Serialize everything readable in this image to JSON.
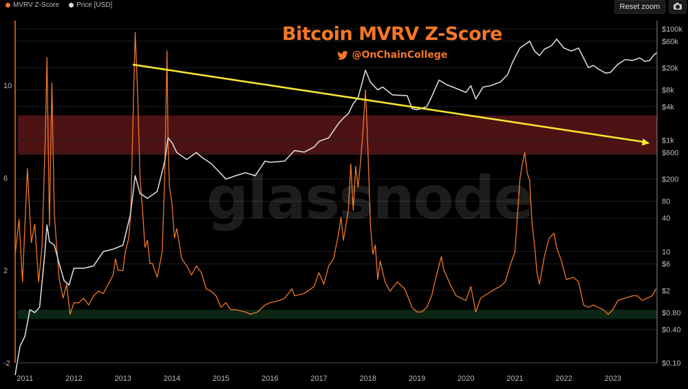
{
  "legend": [
    {
      "label": "MVRV Z-Score",
      "color": "#f37726"
    },
    {
      "label": "Price [USD]",
      "color": "#d9d9d9"
    }
  ],
  "controls": {
    "reset_zoom": "Reset zoom",
    "export_icon": "camera-icon"
  },
  "header": {
    "title": "Bitcoin MVRV Z-Score",
    "handle": "@OnChainCollege",
    "handle_icon": "twitter-bird-icon"
  },
  "watermark": "glassnode",
  "colors": {
    "zscore": "#f37726",
    "price": "#d9d9d9",
    "trend_arrow": "#f5e62f",
    "red_band": "#5a1517",
    "green_band": "#0c2a16",
    "background": "#000000"
  },
  "chart_data": {
    "type": "line",
    "x_ticks": [
      "2011",
      "2012",
      "2013",
      "2014",
      "2015",
      "2016",
      "2017",
      "2018",
      "2019",
      "2020",
      "2021",
      "2022",
      "2023"
    ],
    "x_range": [
      2010.8,
      2023.9
    ],
    "left_axis": {
      "ticks": [
        -2,
        2,
        6,
        10
      ],
      "range": [
        -2,
        12.8
      ]
    },
    "right_axis": {
      "scale": "log",
      "ticks": [
        "$100k",
        "$60k",
        "$20k",
        "$8k",
        "$4k",
        "$1k",
        "$600",
        "$200",
        "80",
        "40",
        "10",
        "$6",
        "$2",
        "$0.80",
        "$0.40",
        "$0.10"
      ],
      "tick_values": [
        100000,
        60000,
        20000,
        8000,
        4000,
        1000,
        600,
        200,
        80,
        40,
        10,
        6,
        2,
        0.8,
        0.4,
        0.1
      ],
      "range": [
        0.1,
        140000
      ]
    },
    "bands": [
      {
        "name": "red",
        "from": 7.0,
        "to": 8.7
      },
      {
        "name": "green",
        "from": -0.1,
        "to": 0.3
      }
    ],
    "trend_arrow": {
      "from": [
        2013.2,
        10.9
      ],
      "to": [
        2023.75,
        7.5
      ]
    },
    "series": [
      {
        "axis": "left",
        "points": [
          [
            2010.8,
            2.7
          ],
          [
            2010.88,
            4.2
          ],
          [
            2010.95,
            1.5
          ],
          [
            2011.05,
            6.4
          ],
          [
            2011.13,
            3.2
          ],
          [
            2011.2,
            4.0
          ],
          [
            2011.28,
            1.5
          ],
          [
            2011.35,
            3.1
          ],
          [
            2011.42,
            8.2
          ],
          [
            2011.45,
            11.2
          ],
          [
            2011.48,
            6.8
          ],
          [
            2011.5,
            3.9
          ],
          [
            2011.55,
            10.1
          ],
          [
            2011.6,
            4.4
          ],
          [
            2011.7,
            1.6
          ],
          [
            2011.78,
            0.8
          ],
          [
            2011.85,
            1.4
          ],
          [
            2011.92,
            0.1
          ],
          [
            2012.0,
            0.6
          ],
          [
            2012.1,
            0.6
          ],
          [
            2012.2,
            0.8
          ],
          [
            2012.3,
            0.5
          ],
          [
            2012.4,
            0.9
          ],
          [
            2012.5,
            1.1
          ],
          [
            2012.6,
            1.0
          ],
          [
            2012.7,
            1.4
          ],
          [
            2012.8,
            1.8
          ],
          [
            2012.85,
            2.5
          ],
          [
            2012.9,
            2.0
          ],
          [
            2013.0,
            2.0
          ],
          [
            2013.05,
            2.8
          ],
          [
            2013.12,
            3.4
          ],
          [
            2013.16,
            4.5
          ],
          [
            2013.2,
            8.0
          ],
          [
            2013.25,
            12.3
          ],
          [
            2013.3,
            9.6
          ],
          [
            2013.35,
            6.0
          ],
          [
            2013.4,
            4.6
          ],
          [
            2013.45,
            3.0
          ],
          [
            2013.5,
            3.3
          ],
          [
            2013.55,
            2.3
          ],
          [
            2013.6,
            2.3
          ],
          [
            2013.7,
            1.7
          ],
          [
            2013.8,
            2.8
          ],
          [
            2013.85,
            5.8
          ],
          [
            2013.9,
            11.5
          ],
          [
            2013.92,
            7.6
          ],
          [
            2013.95,
            5.6
          ],
          [
            2014.0,
            4.9
          ],
          [
            2014.05,
            3.4
          ],
          [
            2014.1,
            3.8
          ],
          [
            2014.2,
            2.5
          ],
          [
            2014.3,
            2.2
          ],
          [
            2014.4,
            1.8
          ],
          [
            2014.5,
            2.2
          ],
          [
            2014.6,
            1.9
          ],
          [
            2014.7,
            1.2
          ],
          [
            2014.8,
            1.1
          ],
          [
            2014.9,
            0.9
          ],
          [
            2015.0,
            0.4
          ],
          [
            2015.1,
            0.6
          ],
          [
            2015.2,
            0.3
          ],
          [
            2015.3,
            0.3
          ],
          [
            2015.5,
            0.2
          ],
          [
            2015.6,
            0.1
          ],
          [
            2015.75,
            0.2
          ],
          [
            2015.9,
            0.5
          ],
          [
            2016.0,
            0.6
          ],
          [
            2016.2,
            0.7
          ],
          [
            2016.3,
            0.8
          ],
          [
            2016.45,
            1.2
          ],
          [
            2016.5,
            0.9
          ],
          [
            2016.7,
            1.0
          ],
          [
            2016.9,
            1.3
          ],
          [
            2017.0,
            1.9
          ],
          [
            2017.1,
            1.4
          ],
          [
            2017.2,
            2.2
          ],
          [
            2017.3,
            2.5
          ],
          [
            2017.4,
            3.6
          ],
          [
            2017.45,
            4.3
          ],
          [
            2017.5,
            3.3
          ],
          [
            2017.6,
            4.6
          ],
          [
            2017.65,
            6.6
          ],
          [
            2017.7,
            4.6
          ],
          [
            2017.75,
            6.5
          ],
          [
            2017.8,
            5.6
          ],
          [
            2017.85,
            6.7
          ],
          [
            2017.9,
            8.1
          ],
          [
            2017.95,
            9.8
          ],
          [
            2017.98,
            8.3
          ],
          [
            2018.02,
            6.0
          ],
          [
            2018.05,
            4.0
          ],
          [
            2018.1,
            2.7
          ],
          [
            2018.15,
            3.1
          ],
          [
            2018.2,
            1.6
          ],
          [
            2018.25,
            2.4
          ],
          [
            2018.35,
            1.5
          ],
          [
            2018.45,
            1.1
          ],
          [
            2018.6,
            1.5
          ],
          [
            2018.75,
            1.2
          ],
          [
            2018.9,
            0.4
          ],
          [
            2019.0,
            0.2
          ],
          [
            2019.1,
            0.2
          ],
          [
            2019.2,
            0.4
          ],
          [
            2019.3,
            0.9
          ],
          [
            2019.4,
            1.8
          ],
          [
            2019.5,
            2.6
          ],
          [
            2019.55,
            2.0
          ],
          [
            2019.7,
            1.3
          ],
          [
            2019.8,
            0.9
          ],
          [
            2019.9,
            0.8
          ],
          [
            2020.0,
            0.7
          ],
          [
            2020.1,
            1.3
          ],
          [
            2020.2,
            0.2
          ],
          [
            2020.3,
            0.8
          ],
          [
            2020.45,
            1.0
          ],
          [
            2020.6,
            1.2
          ],
          [
            2020.7,
            1.3
          ],
          [
            2020.8,
            1.5
          ],
          [
            2020.9,
            2.2
          ],
          [
            2021.0,
            2.8
          ],
          [
            2021.05,
            4.3
          ],
          [
            2021.1,
            5.9
          ],
          [
            2021.15,
            6.6
          ],
          [
            2021.2,
            7.1
          ],
          [
            2021.25,
            6.2
          ],
          [
            2021.3,
            5.9
          ],
          [
            2021.35,
            4.0
          ],
          [
            2021.4,
            3.1
          ],
          [
            2021.45,
            1.9
          ],
          [
            2021.5,
            1.4
          ],
          [
            2021.6,
            2.6
          ],
          [
            2021.7,
            3.4
          ],
          [
            2021.8,
            3.6
          ],
          [
            2021.85,
            3.0
          ],
          [
            2021.95,
            2.4
          ],
          [
            2022.05,
            1.6
          ],
          [
            2022.2,
            1.7
          ],
          [
            2022.3,
            1.5
          ],
          [
            2022.4,
            0.5
          ],
          [
            2022.5,
            0.4
          ],
          [
            2022.6,
            0.5
          ],
          [
            2022.7,
            0.4
          ],
          [
            2022.8,
            0.3
          ],
          [
            2022.9,
            0.1
          ],
          [
            2023.0,
            0.3
          ],
          [
            2023.1,
            0.7
          ],
          [
            2023.25,
            0.8
          ],
          [
            2023.4,
            0.9
          ],
          [
            2023.5,
            0.9
          ],
          [
            2023.6,
            0.7
          ],
          [
            2023.7,
            0.8
          ],
          [
            2023.8,
            0.9
          ],
          [
            2023.88,
            1.2
          ]
        ]
      },
      {
        "axis": "right",
        "points": [
          [
            2010.8,
            0.06
          ],
          [
            2010.9,
            0.2
          ],
          [
            2011.0,
            0.3
          ],
          [
            2011.1,
            0.9
          ],
          [
            2011.2,
            0.8
          ],
          [
            2011.3,
            1.0
          ],
          [
            2011.4,
            8
          ],
          [
            2011.45,
            30
          ],
          [
            2011.5,
            15
          ],
          [
            2011.6,
            13
          ],
          [
            2011.7,
            6
          ],
          [
            2011.8,
            3
          ],
          [
            2011.9,
            2.5
          ],
          [
            2012.0,
            5
          ],
          [
            2012.2,
            5
          ],
          [
            2012.4,
            5.5
          ],
          [
            2012.6,
            10
          ],
          [
            2012.8,
            11
          ],
          [
            2013.0,
            13
          ],
          [
            2013.15,
            45
          ],
          [
            2013.25,
            230
          ],
          [
            2013.35,
            110
          ],
          [
            2013.5,
            90
          ],
          [
            2013.7,
            120
          ],
          [
            2013.85,
            400
          ],
          [
            2013.92,
            1100
          ],
          [
            2014.0,
            900
          ],
          [
            2014.1,
            600
          ],
          [
            2014.3,
            450
          ],
          [
            2014.5,
            600
          ],
          [
            2014.6,
            500
          ],
          [
            2014.8,
            380
          ],
          [
            2015.0,
            250
          ],
          [
            2015.1,
            200
          ],
          [
            2015.3,
            230
          ],
          [
            2015.5,
            260
          ],
          [
            2015.7,
            230
          ],
          [
            2015.9,
            420
          ],
          [
            2016.0,
            400
          ],
          [
            2016.3,
            420
          ],
          [
            2016.5,
            650
          ],
          [
            2016.7,
            610
          ],
          [
            2016.9,
            750
          ],
          [
            2017.0,
            950
          ],
          [
            2017.2,
            1100
          ],
          [
            2017.4,
            2000
          ],
          [
            2017.5,
            2500
          ],
          [
            2017.6,
            3000
          ],
          [
            2017.7,
            4500
          ],
          [
            2017.8,
            5800
          ],
          [
            2017.95,
            18000
          ],
          [
            2018.05,
            11000
          ],
          [
            2018.2,
            8000
          ],
          [
            2018.3,
            9000
          ],
          [
            2018.5,
            6500
          ],
          [
            2018.8,
            6300
          ],
          [
            2018.9,
            3700
          ],
          [
            2019.0,
            3500
          ],
          [
            2019.2,
            4000
          ],
          [
            2019.3,
            6000
          ],
          [
            2019.45,
            12000
          ],
          [
            2019.6,
            10000
          ],
          [
            2019.8,
            8500
          ],
          [
            2020.0,
            7200
          ],
          [
            2020.1,
            9500
          ],
          [
            2020.2,
            5500
          ],
          [
            2020.35,
            9000
          ],
          [
            2020.5,
            9500
          ],
          [
            2020.7,
            11000
          ],
          [
            2020.85,
            15000
          ],
          [
            2020.95,
            25000
          ],
          [
            2021.1,
            45000
          ],
          [
            2021.3,
            60000
          ],
          [
            2021.4,
            40000
          ],
          [
            2021.5,
            33000
          ],
          [
            2021.6,
            43000
          ],
          [
            2021.75,
            50000
          ],
          [
            2021.85,
            65000
          ],
          [
            2022.0,
            45000
          ],
          [
            2022.15,
            40000
          ],
          [
            2022.3,
            45000
          ],
          [
            2022.4,
            30000
          ],
          [
            2022.5,
            20000
          ],
          [
            2022.6,
            22000
          ],
          [
            2022.7,
            19000
          ],
          [
            2022.85,
            16000
          ],
          [
            2022.95,
            16500
          ],
          [
            2023.1,
            23000
          ],
          [
            2023.25,
            28000
          ],
          [
            2023.4,
            27000
          ],
          [
            2023.55,
            30000
          ],
          [
            2023.65,
            26000
          ],
          [
            2023.75,
            27000
          ],
          [
            2023.85,
            35000
          ],
          [
            2023.9,
            37000
          ]
        ]
      }
    ]
  }
}
